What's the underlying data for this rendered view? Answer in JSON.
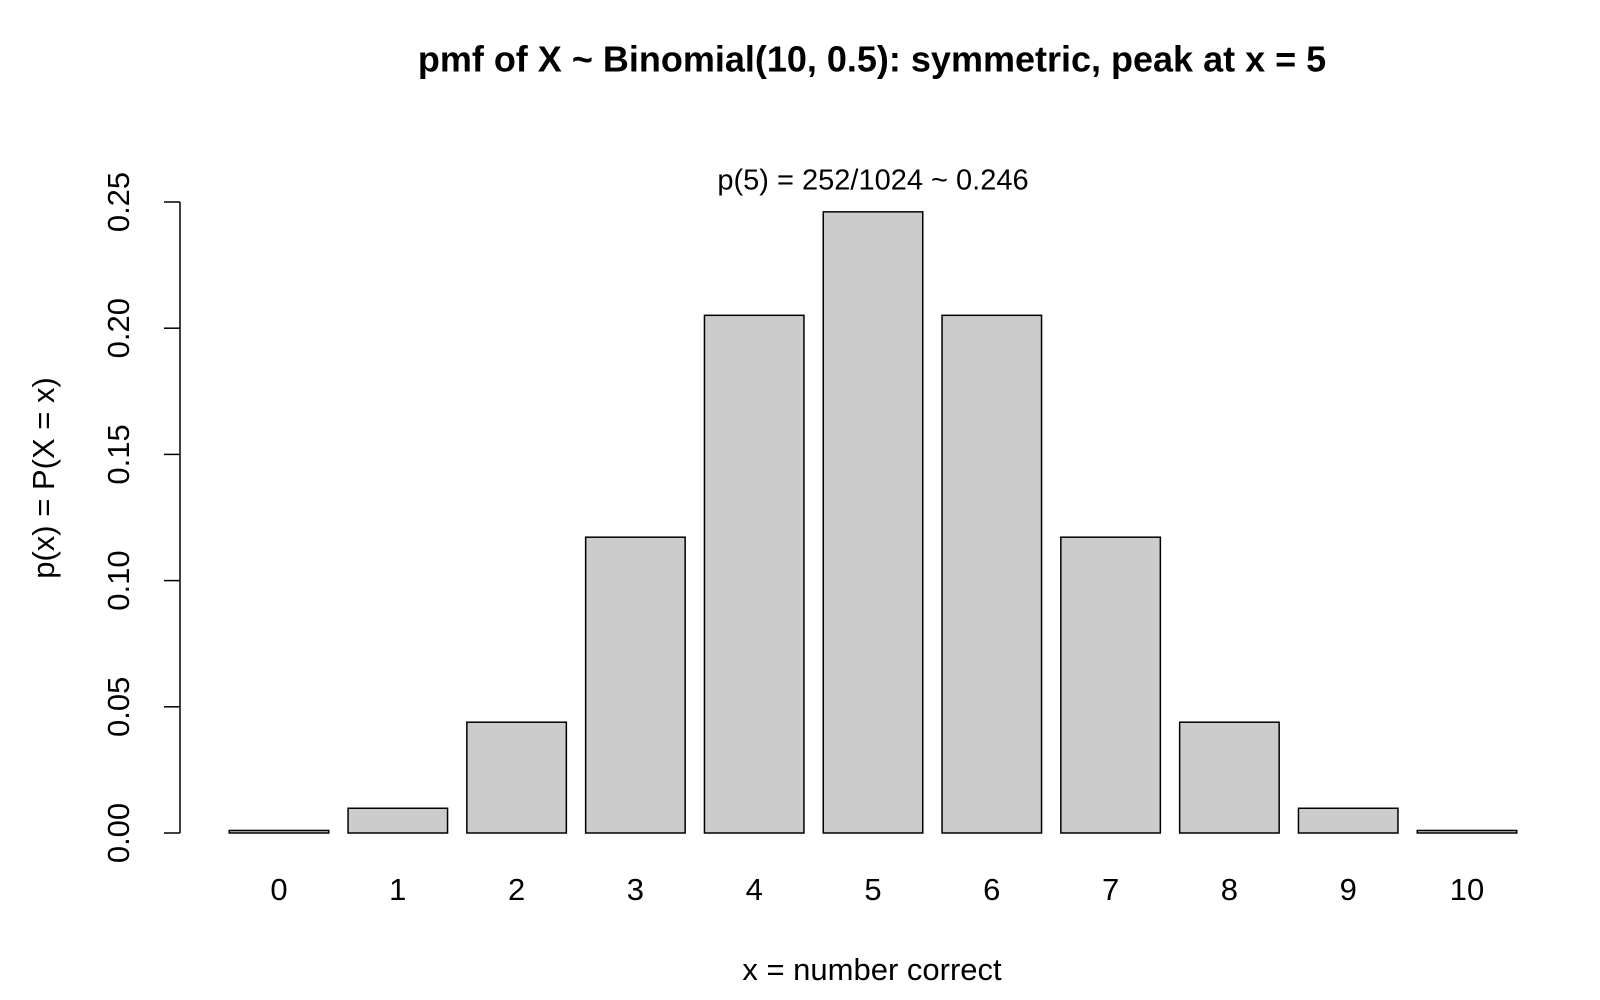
{
  "chart_data": {
    "type": "bar",
    "title": "pmf of X ~ Binomial(10, 0.5): symmetric, peak at x = 5",
    "x_label": "x = number correct",
    "y_label": "p(x) = P(X = x)",
    "annotation": "p(5) = 252/1024 ~ 0.246",
    "annotation_color": "#8b4726",
    "categories": [
      "0",
      "1",
      "2",
      "3",
      "4",
      "5",
      "6",
      "7",
      "8",
      "9",
      "10"
    ],
    "values": [
      0.001,
      0.0098,
      0.0439,
      0.1172,
      0.2051,
      0.2461,
      0.2051,
      0.1172,
      0.0439,
      0.0098,
      0.001
    ],
    "color": "#cccccc",
    "ylim": [
      0,
      0.25
    ],
    "yticks": [
      {
        "value": 0,
        "label": "0.00"
      },
      {
        "value": 0.05,
        "label": "0.05"
      },
      {
        "value": 0.1,
        "label": "0.10"
      },
      {
        "value": 0.15,
        "label": "0.15"
      },
      {
        "value": 0.2,
        "label": "0.20"
      },
      {
        "value": 0.25,
        "label": "0.25"
      }
    ],
    "grid": false
  }
}
